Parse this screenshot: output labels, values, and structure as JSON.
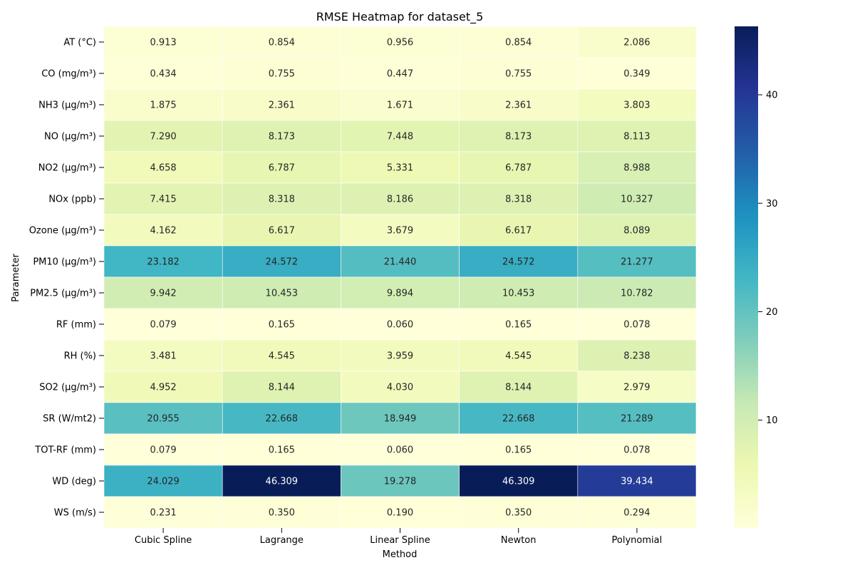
{
  "chart_data": {
    "type": "heatmap",
    "title": "RMSE Heatmap for dataset_5",
    "xlabel": "Method",
    "ylabel": "Parameter",
    "columns": [
      "Cubic Spline",
      "Lagrange",
      "Linear Spline",
      "Newton",
      "Polynomial"
    ],
    "rows": [
      "AT (°C)",
      "CO (mg/m³)",
      "NH3 (µg/m³)",
      "NO (µg/m³)",
      "NO2 (µg/m³)",
      "NOx (ppb)",
      "Ozone (µg/m³)",
      "PM10 (µg/m³)",
      "PM2.5 (µg/m³)",
      "RF (mm)",
      "RH (%)",
      "SO2 (µg/m³)",
      "SR (W/mt2)",
      "TOT-RF (mm)",
      "WD (deg)",
      "WS (m/s)"
    ],
    "values": [
      [
        0.913,
        0.854,
        0.956,
        0.854,
        2.086
      ],
      [
        0.434,
        0.755,
        0.447,
        0.755,
        0.349
      ],
      [
        1.875,
        2.361,
        1.671,
        2.361,
        3.803
      ],
      [
        7.29,
        8.173,
        7.448,
        8.173,
        8.113
      ],
      [
        4.658,
        6.787,
        5.331,
        6.787,
        8.988
      ],
      [
        7.415,
        8.318,
        8.186,
        8.318,
        10.327
      ],
      [
        4.162,
        6.617,
        3.679,
        6.617,
        8.089
      ],
      [
        23.182,
        24.572,
        21.44,
        24.572,
        21.277
      ],
      [
        9.942,
        10.453,
        9.894,
        10.453,
        10.782
      ],
      [
        0.079,
        0.165,
        0.06,
        0.165,
        0.078
      ],
      [
        3.481,
        4.545,
        3.959,
        4.545,
        8.238
      ],
      [
        4.952,
        8.144,
        4.03,
        8.144,
        2.979
      ],
      [
        20.955,
        22.668,
        18.949,
        22.668,
        21.289
      ],
      [
        0.079,
        0.165,
        0.06,
        0.165,
        0.078
      ],
      [
        24.029,
        46.309,
        19.278,
        46.309,
        39.434
      ],
      [
        0.231,
        0.35,
        0.19,
        0.35,
        0.294
      ]
    ],
    "value_labels": [
      [
        "0.913",
        "0.854",
        "0.956",
        "0.854",
        "2.086"
      ],
      [
        "0.434",
        "0.755",
        "0.447",
        "0.755",
        "0.349"
      ],
      [
        "1.875",
        "2.361",
        "1.671",
        "2.361",
        "3.803"
      ],
      [
        "7.290",
        "8.173",
        "7.448",
        "8.173",
        "8.113"
      ],
      [
        "4.658",
        "6.787",
        "5.331",
        "6.787",
        "8.988"
      ],
      [
        "7.415",
        "8.318",
        "8.186",
        "8.318",
        "10.327"
      ],
      [
        "4.162",
        "6.617",
        "3.679",
        "6.617",
        "8.089"
      ],
      [
        "23.182",
        "24.572",
        "21.440",
        "24.572",
        "21.277"
      ],
      [
        "9.942",
        "10.453",
        "9.894",
        "10.453",
        "10.782"
      ],
      [
        "0.079",
        "0.165",
        "0.060",
        "0.165",
        "0.078"
      ],
      [
        "3.481",
        "4.545",
        "3.959",
        "4.545",
        "8.238"
      ],
      [
        "4.952",
        "8.144",
        "4.030",
        "8.144",
        "2.979"
      ],
      [
        "20.955",
        "22.668",
        "18.949",
        "22.668",
        "21.289"
      ],
      [
        "0.079",
        "0.165",
        "0.060",
        "0.165",
        "0.078"
      ],
      [
        "24.029",
        "46.309",
        "19.278",
        "46.309",
        "39.434"
      ],
      [
        "0.231",
        "0.350",
        "0.190",
        "0.350",
        "0.294"
      ]
    ],
    "colorbar": {
      "colormap": "YlGnBu",
      "range": [
        0.06,
        46.309
      ],
      "ticks": [
        10,
        20,
        30,
        40
      ],
      "tick_labels": [
        "10",
        "20",
        "30",
        "40"
      ]
    },
    "grid": false,
    "legend": "colorbar-right"
  }
}
